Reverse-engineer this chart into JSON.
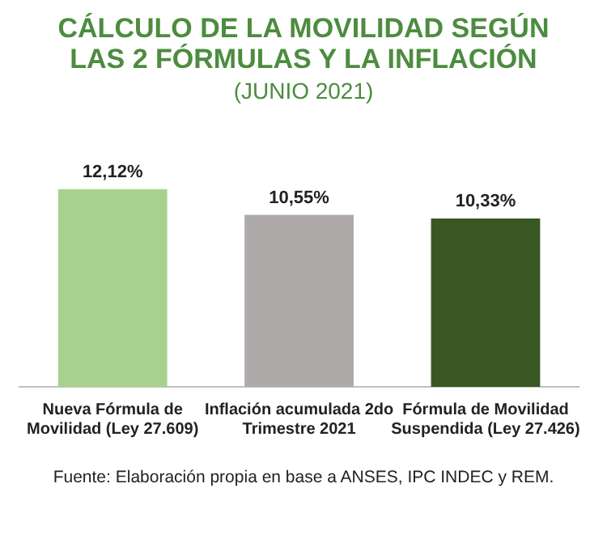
{
  "chart_data": {
    "type": "bar",
    "title": "CÁLCULO DE LA MOVILIDAD SEGÚN LAS 2 FÓRMULAS Y LA INFLACIÓN",
    "subtitle": "(JUNIO 2021)",
    "categories": [
      "Nueva Fórmula de Movilidad (Ley 27.609)",
      "Inflación acumulada 2do Trimestre 2021",
      "Fórmula de Movilidad Suspendida (Ley 27.426)"
    ],
    "values": [
      12.12,
      10.55,
      10.33
    ],
    "colors": [
      "#a9d18e",
      "#aeaaaa",
      "#385723"
    ],
    "value_labels": [
      "12,12%",
      "10,55%",
      "10,33%"
    ],
    "tick_labels": "x",
    "grid": false,
    "legend": false,
    "annotations": [
      "Fuente: Elaboración propia en base a ANSES, IPC INDEC y REM."
    ]
  }
}
